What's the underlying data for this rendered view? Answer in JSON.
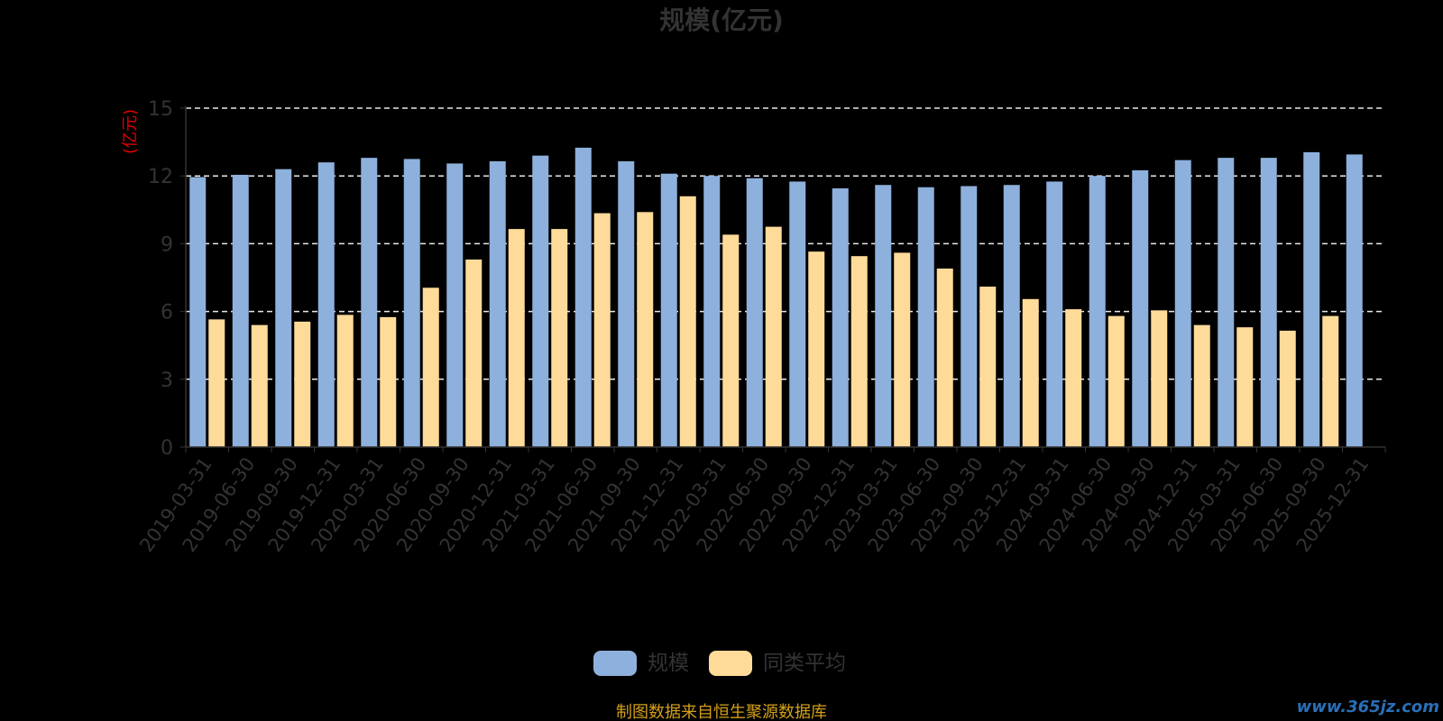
{
  "chart_data": {
    "type": "bar",
    "title": "规模(亿元)",
    "ylabel": "(亿元)",
    "ylim": [
      0,
      15
    ],
    "yticks": [
      0,
      3,
      6,
      9,
      12,
      15
    ],
    "grid": true,
    "legend_position": "bottom-center",
    "categories": [
      "2019-03-31",
      "2019-06-30",
      "2019-09-30",
      "2019-12-31",
      "2020-03-31",
      "2020-06-30",
      "2020-09-30",
      "2020-12-31",
      "2021-03-31",
      "2021-06-30",
      "2021-09-30",
      "2021-12-31",
      "2022-03-31",
      "2022-06-30",
      "2022-09-30",
      "2022-12-31",
      "2023-03-31",
      "2023-06-30",
      "2023-09-30",
      "2023-12-31",
      "2024-03-31",
      "2024-06-30",
      "2024-09-30",
      "2024-12-31",
      "2025-03-31",
      "2025-06-30",
      "2025-09-30",
      "2025-12-31"
    ],
    "series": [
      {
        "name": "规模",
        "color": "#8eb0dc",
        "values": [
          11.95,
          12.05,
          12.3,
          12.6,
          12.8,
          12.75,
          12.55,
          12.65,
          12.9,
          13.25,
          12.65,
          12.1,
          12.0,
          11.9,
          11.75,
          11.45,
          11.6,
          11.5,
          11.55,
          11.6,
          11.75,
          12.0,
          12.25,
          12.7,
          12.8,
          12.8,
          13.05,
          12.95
        ]
      },
      {
        "name": "同类平均",
        "color": "#ffdb9a",
        "values": [
          5.65,
          5.4,
          5.55,
          5.85,
          5.75,
          7.05,
          8.3,
          9.65,
          9.65,
          10.35,
          10.4,
          11.1,
          9.4,
          9.75,
          8.65,
          8.45,
          8.6,
          7.9,
          7.1,
          6.55,
          6.1,
          5.8,
          6.05,
          5.4,
          5.3,
          5.15,
          5.8,
          null
        ]
      }
    ]
  },
  "footer": {
    "source": "制图数据来自恒生聚源数据库",
    "watermark": "www.365jz.com"
  }
}
